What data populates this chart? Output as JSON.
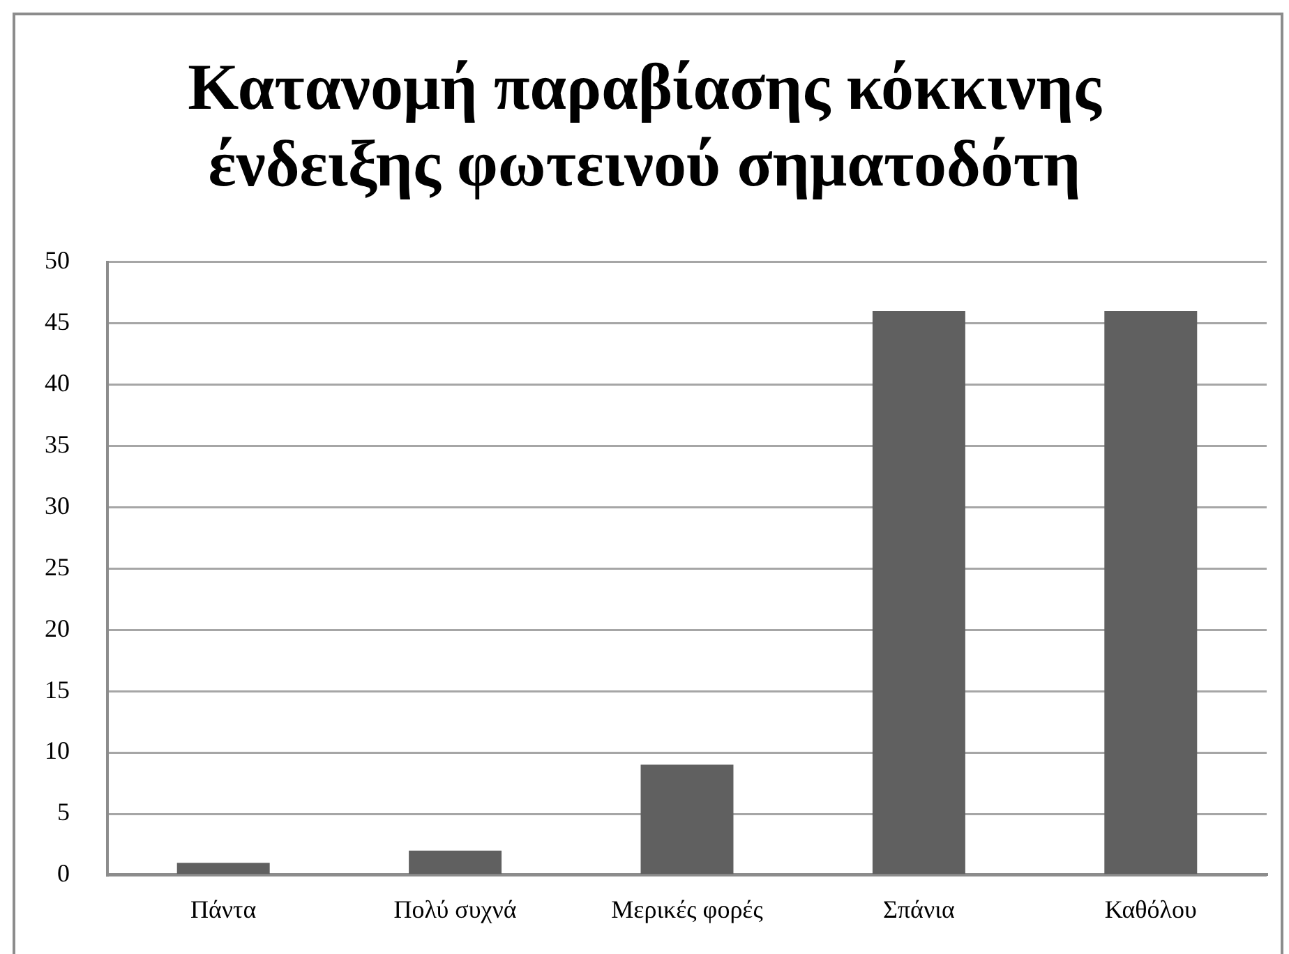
{
  "chart_data": {
    "type": "bar",
    "title": "Κατανομή παραβίασης κόκκινης ένδειξης φωτεινού σηματοδότη",
    "categories": [
      "Πάντα",
      "Πολύ συχνά",
      "Μερικές φορές",
      "Σπάνια",
      "Καθόλου"
    ],
    "values": [
      1,
      2,
      9,
      46,
      46
    ],
    "color": "#606060",
    "ylim": [
      0,
      50
    ],
    "yticks": [
      0,
      5,
      10,
      15,
      20,
      25,
      30,
      35,
      40,
      45,
      50
    ],
    "grid": "y"
  }
}
